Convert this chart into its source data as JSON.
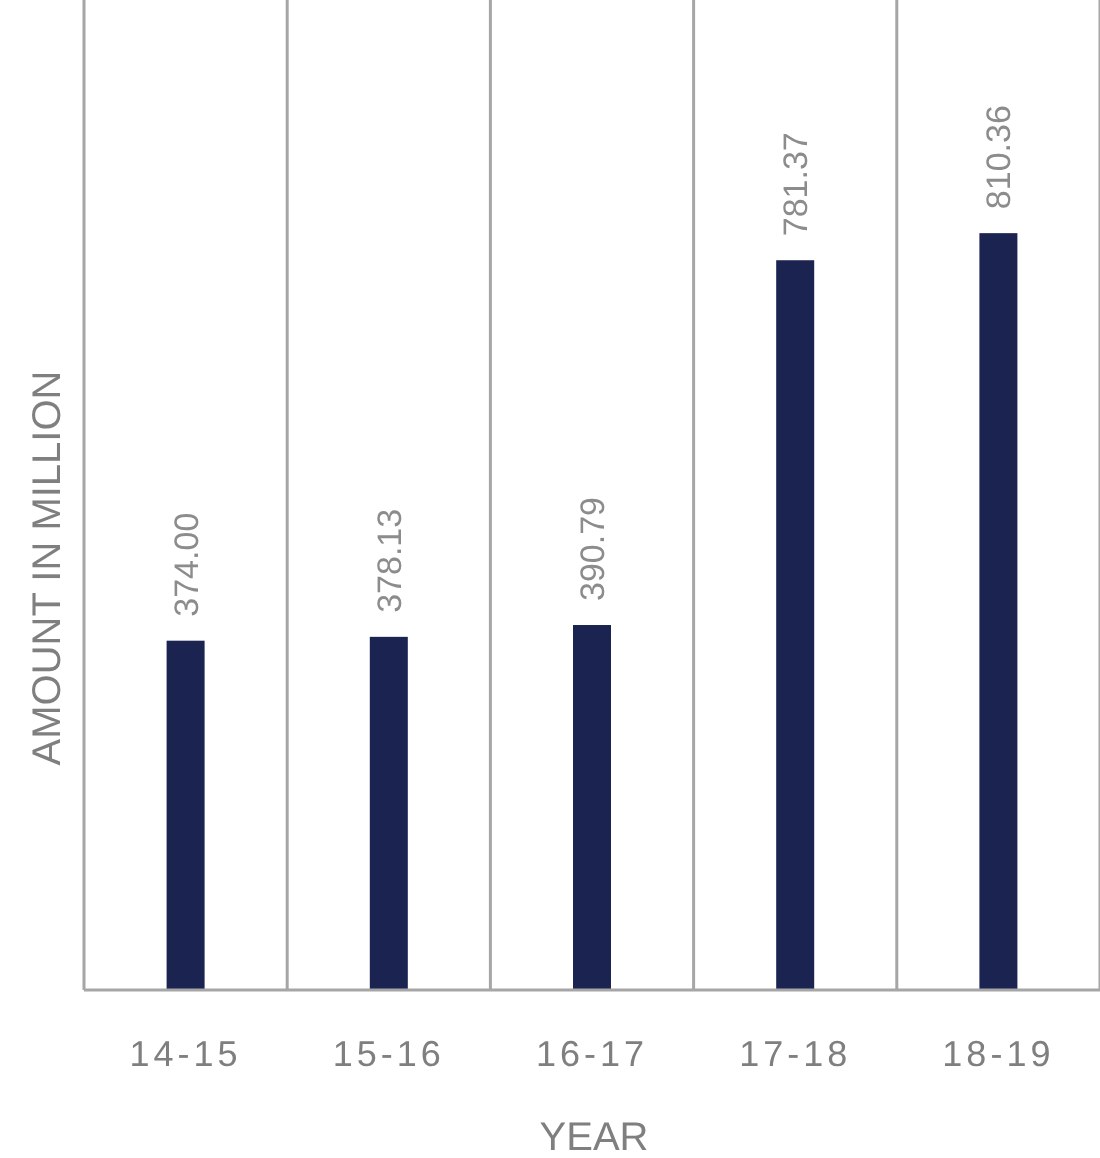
{
  "chart_data": {
    "type": "bar",
    "xlabel": "YEAR",
    "ylabel": "AMOUNT IN MILLION",
    "categories": [
      "14-15",
      "15-16",
      "16-17",
      "17-18",
      "18-19"
    ],
    "values": [
      374.0,
      378.13,
      390.79,
      781.37,
      810.36
    ],
    "value_labels": [
      "374.00",
      "378.13",
      "390.79",
      "781.37",
      "810.36"
    ],
    "color": "#1b2451",
    "ylim": [
      0,
      1060
    ],
    "grid": "x"
  }
}
